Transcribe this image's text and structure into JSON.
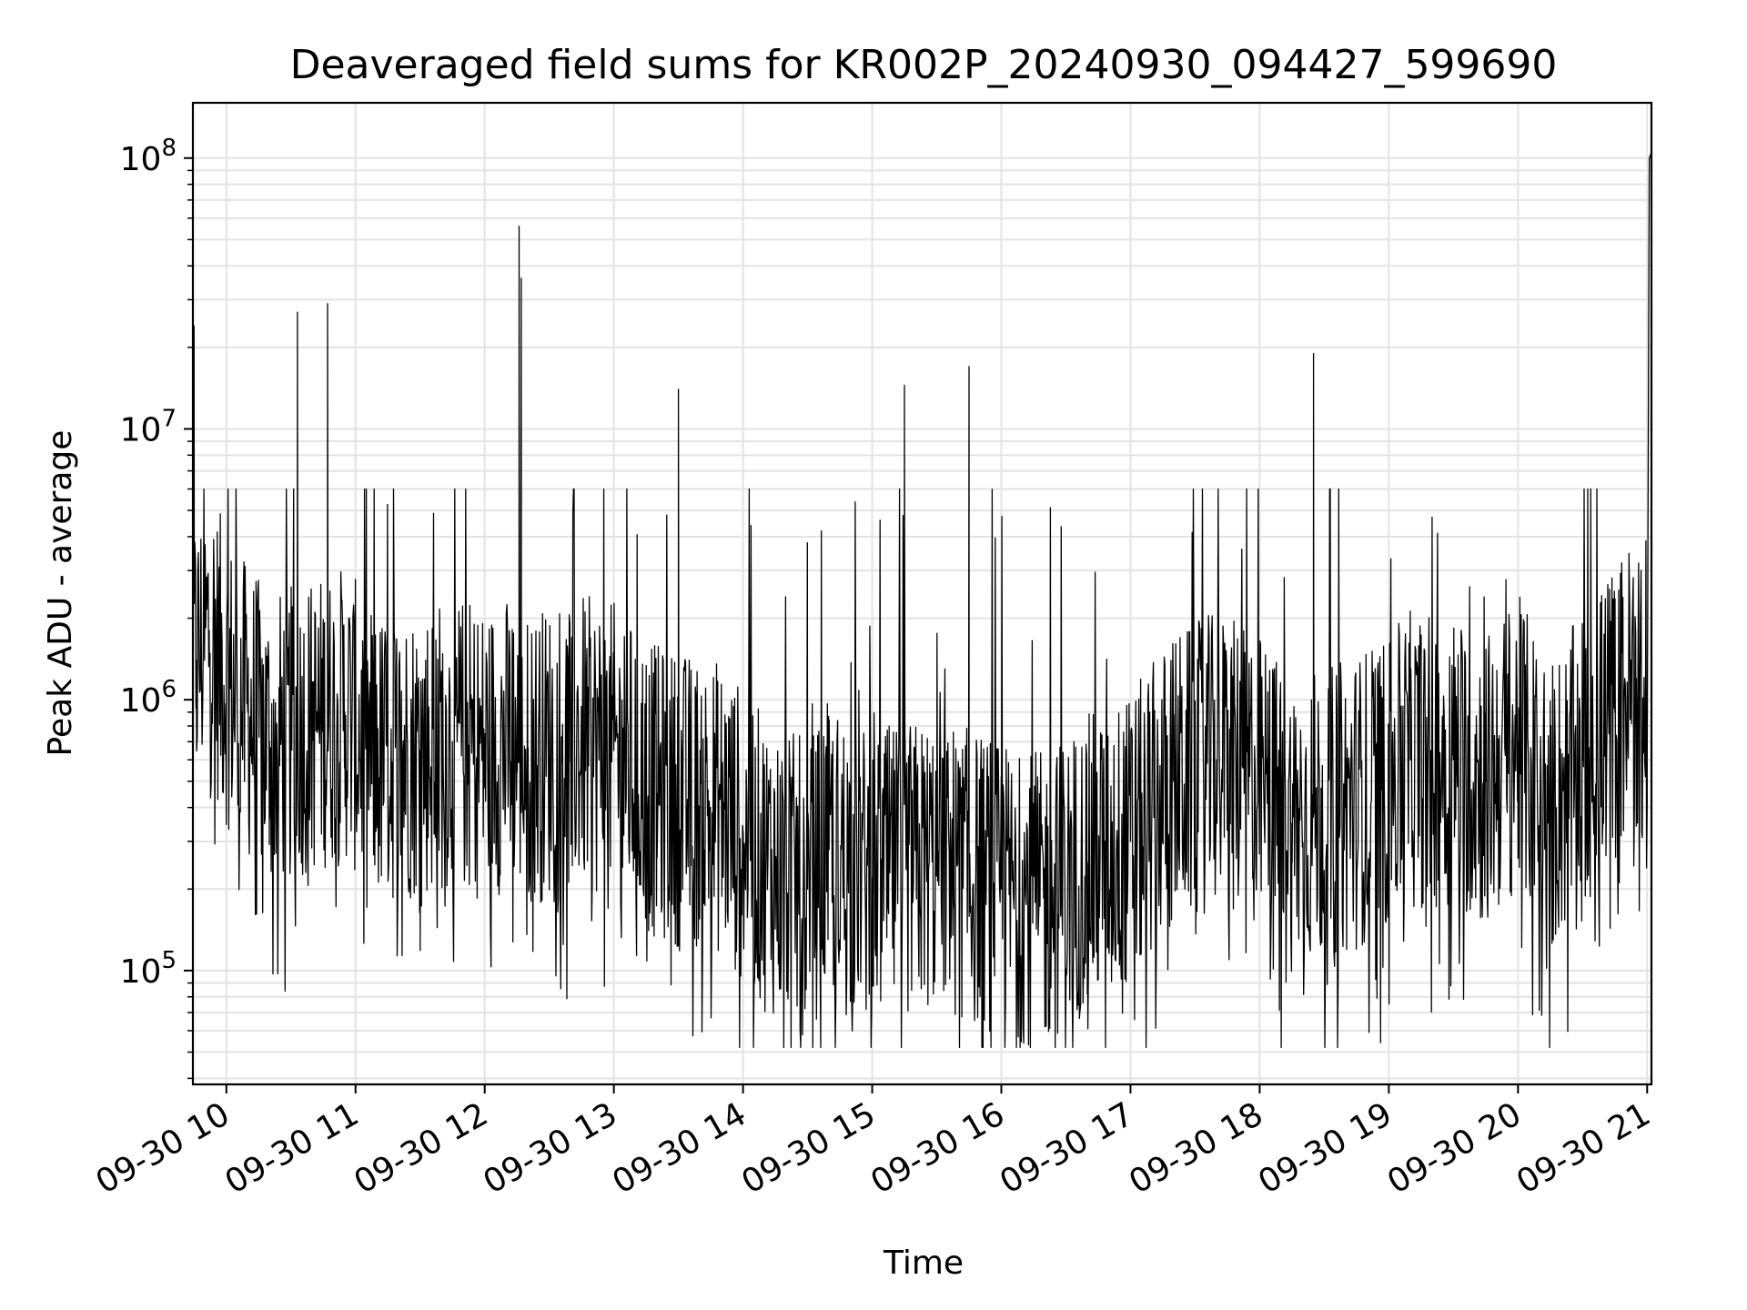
{
  "chart_data": {
    "type": "line",
    "title": "Deaveraged field sums for KR002P_20240930_094427_599690",
    "xlabel": "Time",
    "ylabel": "Peak ADU - average",
    "yscale": "log",
    "grid": true,
    "legend": "none",
    "line_color": "#000000",
    "xlim": [
      "2024-09-30 09:44:27",
      "2024-09-30 21:02:00"
    ],
    "ylim": [
      38000,
      160000000
    ],
    "x_ticks": [
      "09-30 10",
      "09-30 11",
      "09-30 12",
      "09-30 13",
      "09-30 14",
      "09-30 15",
      "09-30 16",
      "09-30 17",
      "09-30 18",
      "09-30 19",
      "09-30 20",
      "09-30 21"
    ],
    "y_ticks": [
      {
        "value": 100000,
        "base": "10",
        "exp": "5"
      },
      {
        "value": 1000000,
        "base": "10",
        "exp": "6"
      },
      {
        "value": 10000000,
        "base": "10",
        "exp": "7"
      },
      {
        "value": 100000000,
        "base": "10",
        "exp": "8"
      }
    ],
    "series": [
      {
        "x": [
          "2024-09-30 09:44:30",
          "2024-09-30 09:45:00",
          "2024-09-30 09:46:00",
          "2024-09-30 09:52:00",
          "2024-09-30 10:00:00",
          "2024-09-30 10:10:00",
          "2024-09-30 10:20:00",
          "2024-09-30 10:33:00",
          "2024-09-30 10:40:00",
          "2024-09-30 10:47:00",
          "2024-09-30 10:55:00",
          "2024-09-30 11:10:00",
          "2024-09-30 11:30:00",
          "2024-09-30 11:45:00",
          "2024-09-30 12:00:00",
          "2024-09-30 12:15:00",
          "2024-09-30 12:16:00",
          "2024-09-30 12:17:00",
          "2024-09-30 12:20:00",
          "2024-09-30 12:40:00",
          "2024-09-30 13:00:00",
          "2024-09-30 13:20:00",
          "2024-09-30 13:30:00",
          "2024-09-30 13:50:00",
          "2024-09-30 14:10:00",
          "2024-09-30 14:30:00",
          "2024-09-30 14:40:00",
          "2024-09-30 15:00:00",
          "2024-09-30 15:15:00",
          "2024-09-30 15:30:00",
          "2024-09-30 15:45:00",
          "2024-09-30 16:00:00",
          "2024-09-30 16:20:00",
          "2024-09-30 16:40:00",
          "2024-09-30 17:00:00",
          "2024-09-30 17:20:00",
          "2024-09-30 17:40:00",
          "2024-09-30 18:00:00",
          "2024-09-30 18:15:00",
          "2024-09-30 18:25:00",
          "2024-09-30 18:40:00",
          "2024-09-30 19:00:00",
          "2024-09-30 19:10:00",
          "2024-09-30 19:30:00",
          "2024-09-30 19:45:00",
          "2024-09-30 20:00:00",
          "2024-09-30 20:15:00",
          "2024-09-30 20:30:00",
          "2024-09-30 20:45:00",
          "2024-09-30 20:55:00",
          "2024-09-30 21:00:00",
          "2024-09-30 21:01:00",
          "2024-09-30 21:02:00"
        ],
        "y": [
          1500000,
          24000000,
          1400000,
          1800000,
          1200000,
          900000,
          700000,
          27000000,
          800000,
          29000000,
          900000,
          600000,
          650000,
          700000,
          650000,
          700000,
          56000000,
          36000000,
          600000,
          700000,
          650000,
          450000,
          14000000,
          400000,
          250000,
          200000,
          280000,
          220000,
          14500000,
          250000,
          17000000,
          200000,
          180000,
          250000,
          300000,
          500000,
          600000,
          500000,
          350000,
          19000000,
          400000,
          500000,
          600000,
          600000,
          500000,
          700000,
          400000,
          600000,
          900000,
          1200000,
          600000,
          100000000,
          105000000
        ]
      }
    ]
  }
}
